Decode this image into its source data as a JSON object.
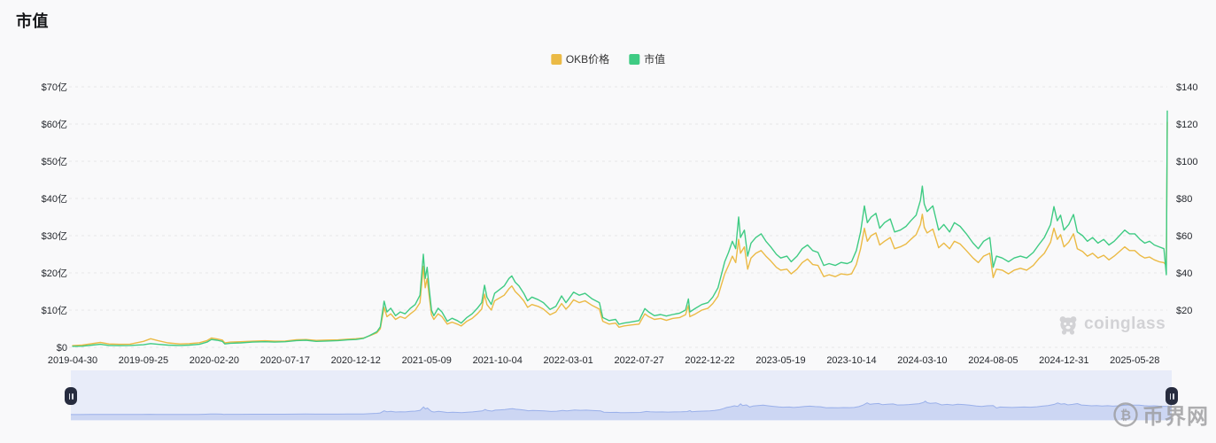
{
  "page": {
    "bg": "#f9f9fa"
  },
  "header": {
    "title": "市值"
  },
  "legend": {
    "items": [
      {
        "label": "OKB价格",
        "color": "#ebba45"
      },
      {
        "label": "市值",
        "color": "#3fcb83"
      }
    ]
  },
  "watermarks": {
    "coinglass": {
      "label": "coinglass",
      "icon": "panda-icon",
      "color": "#d2d2d5"
    },
    "bijie": {
      "label": "币界网",
      "icon": "coin-icon",
      "color": "#9b9b9d"
    }
  },
  "navigator": {
    "bg_color": "#e8ecf9",
    "area_fill": "#ccd6f3",
    "area_line": "#9ab0ea",
    "handle_color": "#272c3f",
    "left_handle": "drag-handle",
    "right_handle": "drag-handle"
  },
  "chart_data": {
    "type": "line",
    "title": "市值",
    "grid": "horizontal-dashed",
    "legend_position": "top-center",
    "series_meta": [
      {
        "name": "OKB价格",
        "color": "#ebba45",
        "axis": "right",
        "field": "price_usd"
      },
      {
        "name": "市值",
        "color": "#3fcb83",
        "axis": "left",
        "field": "mcap_yi_usd"
      }
    ],
    "left_axis": {
      "unit": "亿 USD (市值)",
      "range": [
        0,
        70
      ],
      "ticks": [
        "$70亿",
        "$60亿",
        "$50亿",
        "$40亿",
        "$30亿",
        "$20亿",
        "$10亿",
        "$0"
      ]
    },
    "right_axis": {
      "unit": "USD (OKB价格)",
      "range": [
        0,
        140
      ],
      "ticks": [
        "$140",
        "$120",
        "$100",
        "$80",
        "$60",
        "$40",
        "$20"
      ]
    },
    "x_labels": [
      "2019-04-30",
      "2019-09-25",
      "2020-02-20",
      "2020-07-17",
      "2020-12-12",
      "2021-05-09",
      "2021-10-04",
      "2022-03-01",
      "2022-07-27",
      "2022-12-22",
      "2023-05-19",
      "2023-10-14",
      "2024-03-10",
      "2024-08-05",
      "2024-12-31",
      "2025-05-28"
    ],
    "x_label_interval_days": 148,
    "points_format": [
      "date",
      "mcap_yi_usd",
      "price_usd"
    ],
    "points": [
      [
        "2019-04-30",
        0.25,
        0.9
      ],
      [
        "2019-05-20",
        0.3,
        1.2
      ],
      [
        "2019-06-10",
        0.6,
        2.0
      ],
      [
        "2019-06-27",
        0.8,
        2.6
      ],
      [
        "2019-07-15",
        0.5,
        1.8
      ],
      [
        "2019-08-05",
        0.45,
        1.6
      ],
      [
        "2019-08-28",
        0.5,
        1.7
      ],
      [
        "2019-09-25",
        0.7,
        3.2
      ],
      [
        "2019-10-10",
        1.0,
        4.6
      ],
      [
        "2019-10-25",
        0.8,
        3.6
      ],
      [
        "2019-11-15",
        0.6,
        2.4
      ],
      [
        "2019-12-10",
        0.5,
        1.8
      ],
      [
        "2019-12-30",
        0.6,
        2.0
      ],
      [
        "2020-01-20",
        0.8,
        2.5
      ],
      [
        "2020-02-05",
        1.4,
        3.6
      ],
      [
        "2020-02-14",
        2.1,
        5.0
      ],
      [
        "2020-02-26",
        1.9,
        4.5
      ],
      [
        "2020-03-08",
        1.6,
        3.9
      ],
      [
        "2020-03-13",
        0.9,
        2.4
      ],
      [
        "2020-03-25",
        1.1,
        2.8
      ],
      [
        "2020-04-15",
        1.2,
        3.0
      ],
      [
        "2020-05-10",
        1.4,
        3.3
      ],
      [
        "2020-06-05",
        1.5,
        3.5
      ],
      [
        "2020-06-25",
        1.4,
        3.3
      ],
      [
        "2020-07-17",
        1.5,
        3.4
      ],
      [
        "2020-08-10",
        1.8,
        4.1
      ],
      [
        "2020-08-30",
        1.9,
        4.2
      ],
      [
        "2020-09-20",
        1.6,
        3.7
      ],
      [
        "2020-10-12",
        1.7,
        3.9
      ],
      [
        "2020-11-05",
        1.8,
        4.0
      ],
      [
        "2020-11-25",
        2.0,
        4.4
      ],
      [
        "2020-12-12",
        2.1,
        4.6
      ],
      [
        "2020-12-28",
        2.4,
        5.0
      ],
      [
        "2021-01-10",
        3.2,
        6.2
      ],
      [
        "2021-01-25",
        4.2,
        7.8
      ],
      [
        "2021-02-01",
        5.5,
        10.0
      ],
      [
        "2021-02-09",
        12.4,
        21.5
      ],
      [
        "2021-02-15",
        9.5,
        16.5
      ],
      [
        "2021-02-23",
        10.5,
        18.0
      ],
      [
        "2021-03-05",
        8.5,
        15.0
      ],
      [
        "2021-03-15",
        9.5,
        16.5
      ],
      [
        "2021-03-25",
        9.0,
        15.5
      ],
      [
        "2021-04-05",
        10.5,
        18.0
      ],
      [
        "2021-04-15",
        11.5,
        20.0
      ],
      [
        "2021-04-25",
        14.0,
        24.0
      ],
      [
        "2021-05-02",
        25.0,
        43.5
      ],
      [
        "2021-05-06",
        18.5,
        32.0
      ],
      [
        "2021-05-10",
        21.5,
        37.0
      ],
      [
        "2021-05-14",
        16.0,
        28.0
      ],
      [
        "2021-05-19",
        10.0,
        17.5
      ],
      [
        "2021-05-24",
        8.5,
        15.0
      ],
      [
        "2021-06-02",
        10.5,
        18.0
      ],
      [
        "2021-06-10",
        9.5,
        16.5
      ],
      [
        "2021-06-21",
        7.0,
        12.5
      ],
      [
        "2021-07-01",
        7.8,
        13.5
      ],
      [
        "2021-07-12",
        7.2,
        12.5
      ],
      [
        "2021-07-20",
        6.5,
        11.5
      ],
      [
        "2021-08-01",
        8.0,
        14.0
      ],
      [
        "2021-08-12",
        9.0,
        15.5
      ],
      [
        "2021-08-23",
        10.5,
        18.0
      ],
      [
        "2021-09-01",
        12.0,
        20.5
      ],
      [
        "2021-09-07",
        16.7,
        28.5
      ],
      [
        "2021-09-12",
        13.5,
        23.0
      ],
      [
        "2021-09-21",
        11.5,
        20.0
      ],
      [
        "2021-09-28",
        14.5,
        25.0
      ],
      [
        "2021-10-08",
        15.5,
        26.5
      ],
      [
        "2021-10-18",
        16.5,
        28.0
      ],
      [
        "2021-10-28",
        18.5,
        31.5
      ],
      [
        "2021-11-03",
        19.2,
        33.0
      ],
      [
        "2021-11-10",
        17.5,
        30.0
      ],
      [
        "2021-11-18",
        16.5,
        28.0
      ],
      [
        "2021-11-28",
        14.5,
        25.0
      ],
      [
        "2021-12-06",
        12.5,
        21.5
      ],
      [
        "2021-12-15",
        13.5,
        23.0
      ],
      [
        "2021-12-28",
        12.8,
        22.0
      ],
      [
        "2022-01-08",
        12.0,
        20.5
      ],
      [
        "2022-01-22",
        10.2,
        17.5
      ],
      [
        "2022-02-03",
        11.0,
        19.0
      ],
      [
        "2022-02-15",
        13.8,
        23.5
      ],
      [
        "2022-02-24",
        12.0,
        20.5
      ],
      [
        "2022-03-02",
        13.0,
        22.0
      ],
      [
        "2022-03-12",
        14.8,
        25.5
      ],
      [
        "2022-03-24",
        14.0,
        24.0
      ],
      [
        "2022-04-05",
        14.5,
        25.0
      ],
      [
        "2022-04-20",
        13.0,
        22.5
      ],
      [
        "2022-05-05",
        12.0,
        20.5
      ],
      [
        "2022-05-12",
        8.0,
        14.0
      ],
      [
        "2022-05-25",
        7.2,
        12.5
      ],
      [
        "2022-06-08",
        7.5,
        13.0
      ],
      [
        "2022-06-15",
        6.2,
        10.8
      ],
      [
        "2022-06-25",
        6.5,
        11.5
      ],
      [
        "2022-07-10",
        6.8,
        12.0
      ],
      [
        "2022-07-27",
        7.2,
        12.5
      ],
      [
        "2022-08-08",
        10.4,
        18.0
      ],
      [
        "2022-08-16",
        9.5,
        16.5
      ],
      [
        "2022-08-28",
        8.5,
        15.0
      ],
      [
        "2022-09-10",
        8.8,
        15.5
      ],
      [
        "2022-09-22",
        8.4,
        14.5
      ],
      [
        "2022-10-05",
        8.8,
        15.5
      ],
      [
        "2022-10-20",
        9.2,
        16.0
      ],
      [
        "2022-11-01",
        10.0,
        17.5
      ],
      [
        "2022-11-07",
        13.0,
        22.5
      ],
      [
        "2022-11-10",
        9.5,
        16.5
      ],
      [
        "2022-11-22",
        10.5,
        18.0
      ],
      [
        "2022-12-05",
        11.5,
        20.0
      ],
      [
        "2022-12-18",
        12.0,
        21.0
      ],
      [
        "2022-12-28",
        13.5,
        23.5
      ],
      [
        "2023-01-08",
        16.0,
        27.5
      ],
      [
        "2023-01-15",
        19.5,
        33.5
      ],
      [
        "2023-01-22",
        23.0,
        39.5
      ],
      [
        "2023-01-30",
        25.5,
        44.0
      ],
      [
        "2023-02-07",
        28.5,
        49.0
      ],
      [
        "2023-02-14",
        26.5,
        45.5
      ],
      [
        "2023-02-20",
        35.0,
        58.0
      ],
      [
        "2023-02-24",
        29.5,
        50.5
      ],
      [
        "2023-03-04",
        31.5,
        54.0
      ],
      [
        "2023-03-11",
        24.5,
        42.0
      ],
      [
        "2023-03-18",
        28.0,
        48.0
      ],
      [
        "2023-03-28",
        29.5,
        50.5
      ],
      [
        "2023-04-08",
        30.5,
        52.0
      ],
      [
        "2023-04-18",
        28.5,
        49.0
      ],
      [
        "2023-04-28",
        27.0,
        46.5
      ],
      [
        "2023-05-10",
        25.0,
        43.0
      ],
      [
        "2023-05-19",
        24.0,
        41.5
      ],
      [
        "2023-06-01",
        24.5,
        42.0
      ],
      [
        "2023-06-10",
        23.0,
        39.5
      ],
      [
        "2023-06-22",
        24.5,
        42.0
      ],
      [
        "2023-07-03",
        26.5,
        45.5
      ],
      [
        "2023-07-14",
        27.5,
        47.5
      ],
      [
        "2023-07-25",
        26.0,
        44.5
      ],
      [
        "2023-08-05",
        25.5,
        44.0
      ],
      [
        "2023-08-17",
        22.0,
        38.0
      ],
      [
        "2023-08-28",
        22.5,
        39.0
      ],
      [
        "2023-09-10",
        22.0,
        38.0
      ],
      [
        "2023-09-22",
        22.8,
        39.5
      ],
      [
        "2023-10-05",
        22.5,
        39.0
      ],
      [
        "2023-10-14",
        23.0,
        39.5
      ],
      [
        "2023-10-24",
        26.0,
        44.5
      ],
      [
        "2023-11-02",
        31.0,
        53.0
      ],
      [
        "2023-11-10",
        38.0,
        64.0
      ],
      [
        "2023-11-16",
        33.5,
        57.0
      ],
      [
        "2023-11-24",
        35.0,
        60.0
      ],
      [
        "2023-12-04",
        36.0,
        61.5
      ],
      [
        "2023-12-12",
        32.0,
        55.0
      ],
      [
        "2023-12-22",
        33.5,
        57.0
      ],
      [
        "2024-01-03",
        34.5,
        59.0
      ],
      [
        "2024-01-12",
        31.0,
        53.0
      ],
      [
        "2024-01-24",
        31.5,
        54.0
      ],
      [
        "2024-02-05",
        32.5,
        55.5
      ],
      [
        "2024-02-15",
        34.0,
        58.0
      ],
      [
        "2024-02-26",
        35.5,
        60.5
      ],
      [
        "2024-03-06",
        39.5,
        66.0
      ],
      [
        "2024-03-10",
        43.3,
        71.5
      ],
      [
        "2024-03-14",
        38.5,
        64.5
      ],
      [
        "2024-03-20",
        36.5,
        61.5
      ],
      [
        "2024-04-01",
        38.0,
        63.5
      ],
      [
        "2024-04-13",
        31.5,
        53.5
      ],
      [
        "2024-04-24",
        33.0,
        56.0
      ],
      [
        "2024-05-06",
        31.0,
        53.0
      ],
      [
        "2024-05-16",
        33.5,
        57.0
      ],
      [
        "2024-05-28",
        32.5,
        55.5
      ],
      [
        "2024-06-10",
        30.5,
        52.0
      ],
      [
        "2024-06-24",
        28.0,
        48.0
      ],
      [
        "2024-07-05",
        26.5,
        45.5
      ],
      [
        "2024-07-16",
        28.5,
        49.0
      ],
      [
        "2024-07-29",
        29.5,
        50.5
      ],
      [
        "2024-08-05",
        21.5,
        37.5
      ],
      [
        "2024-08-12",
        24.5,
        42.0
      ],
      [
        "2024-08-24",
        24.0,
        41.5
      ],
      [
        "2024-09-06",
        23.0,
        39.5
      ],
      [
        "2024-09-18",
        24.0,
        41.5
      ],
      [
        "2024-10-01",
        24.5,
        42.5
      ],
      [
        "2024-10-14",
        24.0,
        41.5
      ],
      [
        "2024-10-28",
        25.5,
        44.0
      ],
      [
        "2024-11-08",
        27.5,
        47.5
      ],
      [
        "2024-11-20",
        29.5,
        50.5
      ],
      [
        "2024-12-03",
        33.0,
        56.5
      ],
      [
        "2024-12-10",
        37.8,
        64.0
      ],
      [
        "2024-12-17",
        34.0,
        58.0
      ],
      [
        "2024-12-24",
        35.5,
        60.5
      ],
      [
        "2024-12-31",
        31.5,
        54.0
      ],
      [
        "2025-01-10",
        33.0,
        56.5
      ],
      [
        "2025-01-20",
        35.7,
        61.0
      ],
      [
        "2025-01-28",
        31.0,
        53.0
      ],
      [
        "2025-02-08",
        30.0,
        51.5
      ],
      [
        "2025-02-18",
        28.5,
        49.0
      ],
      [
        "2025-03-01",
        29.5,
        50.5
      ],
      [
        "2025-03-12",
        28.0,
        48.0
      ],
      [
        "2025-03-24",
        29.0,
        49.5
      ],
      [
        "2025-04-04",
        27.5,
        47.0
      ],
      [
        "2025-04-15",
        28.5,
        49.0
      ],
      [
        "2025-04-26",
        30.0,
        51.5
      ],
      [
        "2025-05-07",
        31.5,
        54.0
      ],
      [
        "2025-05-17",
        30.5,
        52.0
      ],
      [
        "2025-05-28",
        30.5,
        52.0
      ],
      [
        "2025-06-08",
        29.0,
        49.5
      ],
      [
        "2025-06-18",
        28.0,
        48.0
      ],
      [
        "2025-06-28",
        28.5,
        48.5
      ],
      [
        "2025-07-08",
        27.5,
        47.0
      ],
      [
        "2025-07-18",
        27.0,
        46.0
      ],
      [
        "2025-07-28",
        26.5,
        45.5
      ],
      [
        "2025-08-02",
        19.5,
        44.0
      ],
      [
        "2025-08-04",
        63.5,
        121.0
      ]
    ]
  }
}
